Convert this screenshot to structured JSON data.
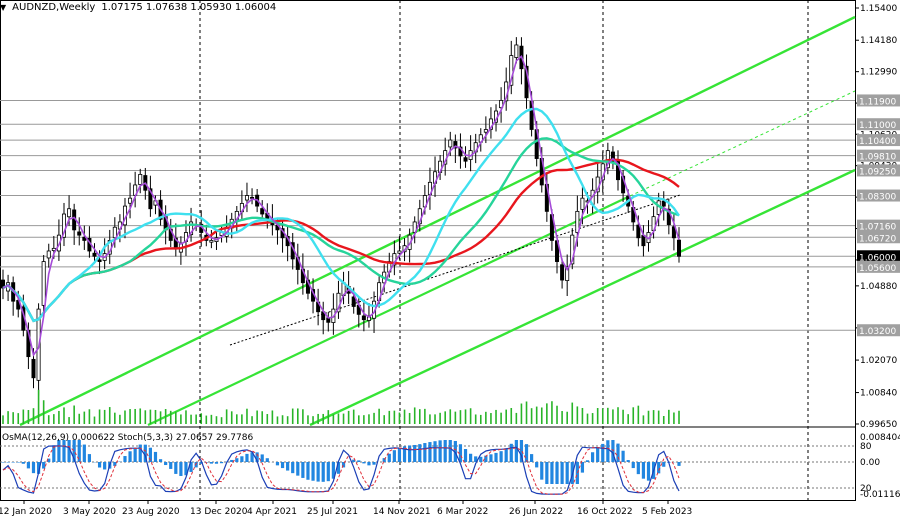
{
  "header": {
    "symbol": "AUDNZD,Weekly",
    "ohlc": "1.07175 1.07638 1.05930 1.06004",
    "arrow": "▼"
  },
  "indicator_header": "OsMA(12,26,9) 0.000622 Stoch(5,3,3) 27.0657 29.7786",
  "colors": {
    "background": "#ffffff",
    "candles": "#000000",
    "ma_red": "#e8161d",
    "ma_cyan": "#3fe0ef",
    "ma_green": "#26d49a",
    "ma_violet": "#a54ad8",
    "channel": "#36e436",
    "osma": "#2186e0",
    "stoch_main": "#1b3fb6",
    "stoch_signal": "#e0303a",
    "volume": "#28b428",
    "grid": "#000000",
    "current_price_box": "#000000"
  },
  "chart_data": {
    "type": "candlestick",
    "title": "AUDNZD,Weekly",
    "x_tick_labels": [
      "12 Jan 2020",
      "3 May 2020",
      "23 Aug 2020",
      "13 Dec 2020",
      "4 Apr 2021",
      "25 Jul 2021",
      "14 Nov 2021",
      "6 Mar 2022",
      "26 Jun 2022",
      "16 Oct 2022",
      "5 Feb 2023"
    ],
    "y_ticks": [
      "1.15400",
      "1.14180",
      "1.12990",
      "1.11800",
      "1.10620",
      "1.09430",
      "1.08240",
      "1.07050",
      "1.05860",
      "1.04880",
      "1.03290",
      "1.02070",
      "1.00840",
      "0.99650"
    ],
    "ylim": [
      0.9965,
      1.154
    ],
    "price_levels": [
      "1.11900",
      "1.11000",
      "1.10400",
      "1.09810",
      "1.09250",
      "1.08300",
      "1.07160",
      "1.06720",
      "1.06000",
      "1.05600",
      "1.03200"
    ],
    "current_price": "1.06000",
    "weekly_close": [
      1.048,
      1.05,
      1.043,
      1.04,
      1.032,
      1.022,
      1.014,
      1.04,
      1.058,
      1.062,
      1.063,
      1.068,
      1.076,
      1.078,
      1.07,
      1.068,
      1.066,
      1.062,
      1.06,
      1.058,
      1.061,
      1.066,
      1.071,
      1.073,
      1.079,
      1.082,
      1.087,
      1.091,
      1.085,
      1.078,
      1.081,
      1.074,
      1.07,
      1.066,
      1.063,
      1.065,
      1.069,
      1.073,
      1.072,
      1.069,
      1.066,
      1.066,
      1.067,
      1.069,
      1.071,
      1.074,
      1.077,
      1.08,
      1.083,
      1.082,
      1.079,
      1.076,
      1.074,
      1.072,
      1.07,
      1.067,
      1.064,
      1.059,
      1.055,
      1.05,
      1.046,
      1.043,
      1.039,
      1.036,
      1.035,
      1.04,
      1.046,
      1.05,
      1.046,
      1.041,
      1.038,
      1.036,
      1.037,
      1.043,
      1.05,
      1.054,
      1.058,
      1.061,
      1.062,
      1.064,
      1.068,
      1.073,
      1.078,
      1.083,
      1.088,
      1.092,
      1.096,
      1.1,
      1.104,
      1.101,
      1.098,
      1.096,
      1.1,
      1.103,
      1.106,
      1.108,
      1.112,
      1.115,
      1.119,
      1.126,
      1.136,
      1.14,
      1.131,
      1.12,
      1.108,
      1.097,
      1.087,
      1.077,
      1.066,
      1.058,
      1.051,
      1.056,
      1.068,
      1.077,
      1.082,
      1.081,
      1.085,
      1.09,
      1.095,
      1.1,
      1.096,
      1.089,
      1.084,
      1.079,
      1.073,
      1.067,
      1.064,
      1.069,
      1.075,
      1.081,
      1.079,
      1.072,
      1.067,
      1.06
    ]
  }
}
